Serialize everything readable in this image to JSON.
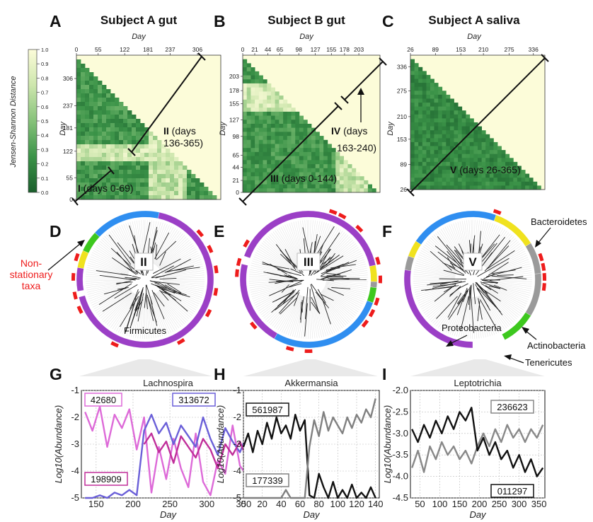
{
  "panel_letters": [
    "A",
    "B",
    "C",
    "D",
    "E",
    "F",
    "G",
    "H",
    "I"
  ],
  "colorbar": {
    "label": "Jensen-Shannon Distance",
    "ticks": [
      "1.0",
      "0.9",
      "0.8",
      "0.7",
      "0.6",
      "0.5",
      "0.4",
      "0.3",
      "0.2",
      "0.1",
      "0.0"
    ]
  },
  "heatmaps": [
    {
      "title": "Subject A gut",
      "axis_label": "Day",
      "ticks": [
        "0",
        "55",
        "122",
        "181",
        "237",
        "306"
      ],
      "range": [
        0,
        365
      ],
      "segments": [
        {
          "roman": "I",
          "text": "(days 0-69)"
        },
        {
          "roman": "II",
          "text": "(days",
          "text2": "136-365)"
        }
      ]
    },
    {
      "title": "Subject B gut",
      "axis_label": "Day",
      "ticks": [
        "0",
        "21",
        "44",
        "65",
        "98",
        "127",
        "155",
        "178",
        "203"
      ],
      "range": [
        0,
        240
      ],
      "segments": [
        {
          "roman": "III",
          "text": "(days 0-144)"
        },
        {
          "roman": "IV",
          "text": "(days",
          "text2": "163-240)"
        }
      ]
    },
    {
      "title": "Subject A saliva",
      "axis_label": "Day",
      "ticks": [
        "26",
        "89",
        "153",
        "210",
        "275",
        "336"
      ],
      "range": [
        26,
        365
      ],
      "segments": [
        {
          "roman": "V",
          "text": "(days 26-365)"
        }
      ]
    }
  ],
  "trees": [
    {
      "roman": "II",
      "annotations": [
        "Non-",
        "stationary",
        "taxa",
        "Firmicutes"
      ]
    },
    {
      "roman": "III"
    },
    {
      "roman": "V",
      "annotations": [
        "Bacteroidetes",
        "Proteobacteria",
        "Actinobacteria",
        "Tenericutes"
      ]
    }
  ],
  "phylum_colors": {
    "Firmicutes": "#9b3fc6",
    "Bacteroidetes": "#2f8ef0",
    "Actinobacteria": "#f0e21e",
    "Proteobacteria": "#3dc81e",
    "Tenericutes": "#9a9a9a",
    "nonstationary": "#ee1c1c"
  },
  "chart_data": [
    {
      "type": "line",
      "title": "Lachnospira",
      "xlabel": "Day",
      "ylabel": "Log10(Abundance)",
      "xlim": [
        130,
        365
      ],
      "ylim": [
        -5,
        -1
      ],
      "xticks": [
        "150",
        "200",
        "250",
        "300",
        "350"
      ],
      "yticks": [
        "-1",
        "-2",
        "-3",
        "-4",
        "-5"
      ],
      "series": [
        {
          "name": "42680",
          "color": "#dd6ad8",
          "x": [
            135,
            145,
            155,
            165,
            175,
            185,
            195,
            205,
            215,
            225,
            235,
            245,
            255,
            265,
            275,
            285,
            295,
            305,
            315,
            325,
            335,
            345,
            355
          ],
          "y": [
            -1.8,
            -2.5,
            -1.6,
            -3.1,
            -1.9,
            -2.4,
            -1.7,
            -3.2,
            -2.0,
            -4.8,
            -3.1,
            -4.3,
            -2.8,
            -3.9,
            -4.6,
            -2.6,
            -4.4,
            -4.9,
            -3.6,
            -4.1,
            -2.3,
            -3.8,
            -4.2
          ]
        },
        {
          "name": "313672",
          "color": "#6a5fd8",
          "x": [
            135,
            145,
            155,
            165,
            175,
            185,
            195,
            205,
            215,
            225,
            235,
            245,
            255,
            265,
            275,
            285,
            295,
            305,
            315,
            325,
            335,
            345,
            355
          ],
          "y": [
            -5.0,
            -5.0,
            -4.9,
            -5.0,
            -4.8,
            -4.9,
            -4.7,
            -4.9,
            -2.5,
            -1.9,
            -2.6,
            -2.2,
            -3.0,
            -2.3,
            -2.7,
            -3.1,
            -2.0,
            -2.8,
            -3.4,
            -2.4,
            -2.9,
            -3.3,
            -2.6
          ]
        },
        {
          "name": "198909",
          "color": "#c02f9a",
          "x": [
            215,
            225,
            235,
            245,
            255,
            265,
            275,
            285,
            295,
            305,
            315,
            325,
            335,
            345,
            355
          ],
          "y": [
            -3.0,
            -2.6,
            -3.3,
            -2.9,
            -3.7,
            -2.7,
            -3.1,
            -3.5,
            -2.8,
            -3.2,
            -3.9,
            -3.0,
            -3.4,
            -2.9,
            -3.6
          ]
        }
      ]
    },
    {
      "type": "line",
      "title": "Akkermansia",
      "xlabel": "Day",
      "ylabel": "Log10(Abundance)",
      "xlim": [
        0,
        144
      ],
      "ylim": [
        -5,
        -1
      ],
      "xticks": [
        "0",
        "20",
        "40",
        "60",
        "80",
        "100",
        "120",
        "140"
      ],
      "yticks": [
        "-1",
        "-2",
        "-3",
        "-4",
        "-5"
      ],
      "series": [
        {
          "name": "561987",
          "color": "#111111",
          "x": [
            0,
            5,
            10,
            15,
            20,
            25,
            30,
            35,
            40,
            45,
            50,
            55,
            60,
            65,
            70,
            75,
            80,
            85,
            90,
            95,
            100,
            105,
            110,
            115,
            120,
            125,
            130,
            135,
            140
          ],
          "y": [
            -3.1,
            -2.6,
            -3.3,
            -2.5,
            -3.0,
            -2.2,
            -2.8,
            -2.0,
            -2.6,
            -2.3,
            -2.8,
            -1.9,
            -2.5,
            -2.1,
            -4.9,
            -5.0,
            -4.1,
            -4.6,
            -5.0,
            -4.4,
            -5.0,
            -4.7,
            -5.0,
            -4.5,
            -5.0,
            -4.8,
            -5.0,
            -4.6,
            -5.0
          ]
        },
        {
          "name": "177339",
          "color": "#808080",
          "x": [
            0,
            10,
            20,
            30,
            40,
            45,
            50,
            60,
            65,
            70,
            75,
            80,
            85,
            90,
            95,
            100,
            105,
            110,
            115,
            120,
            125,
            130,
            135,
            140
          ],
          "y": [
            -5.0,
            -5.0,
            -5.0,
            -5.0,
            -5.0,
            -4.7,
            -5.0,
            -5.0,
            -5.0,
            -3.1,
            -2.1,
            -2.7,
            -1.8,
            -2.5,
            -2.0,
            -2.3,
            -2.6,
            -2.0,
            -2.4,
            -1.9,
            -2.2,
            -1.7,
            -2.0,
            -1.3
          ]
        }
      ]
    },
    {
      "type": "line",
      "title": "Leptotrichia",
      "xlabel": "Day",
      "ylabel": "Log10(Abundance)",
      "xlim": [
        26,
        365
      ],
      "ylim": [
        -4.5,
        -2.0
      ],
      "xticks": [
        "50",
        "100",
        "150",
        "200",
        "250",
        "300",
        "350"
      ],
      "yticks": [
        "-2.0",
        "-2.5",
        "-3.0",
        "-3.5",
        "-4.0",
        "-4.5"
      ],
      "series": [
        {
          "name": "236623",
          "color": "#888888",
          "x": [
            30,
            45,
            60,
            75,
            90,
            105,
            120,
            135,
            150,
            165,
            180,
            195,
            210,
            225,
            240,
            255,
            270,
            285,
            300,
            315,
            330,
            345,
            360
          ],
          "y": [
            -3.8,
            -3.4,
            -3.9,
            -3.3,
            -3.6,
            -3.2,
            -3.5,
            -3.3,
            -3.6,
            -3.4,
            -3.7,
            -3.3,
            -3.0,
            -3.3,
            -2.9,
            -3.2,
            -2.8,
            -3.1,
            -2.9,
            -3.2,
            -2.9,
            -3.1,
            -2.8
          ]
        },
        {
          "name": "011297",
          "color": "#111111",
          "x": [
            30,
            45,
            60,
            75,
            90,
            105,
            120,
            135,
            150,
            165,
            180,
            195,
            210,
            225,
            240,
            255,
            270,
            285,
            300,
            315,
            330,
            345,
            360
          ],
          "y": [
            -2.9,
            -3.2,
            -2.8,
            -3.1,
            -2.7,
            -3.0,
            -2.6,
            -2.9,
            -2.5,
            -2.7,
            -2.4,
            -3.4,
            -3.1,
            -3.5,
            -3.2,
            -3.6,
            -3.4,
            -3.8,
            -3.5,
            -3.9,
            -3.6,
            -4.0,
            -3.8
          ]
        }
      ]
    }
  ]
}
